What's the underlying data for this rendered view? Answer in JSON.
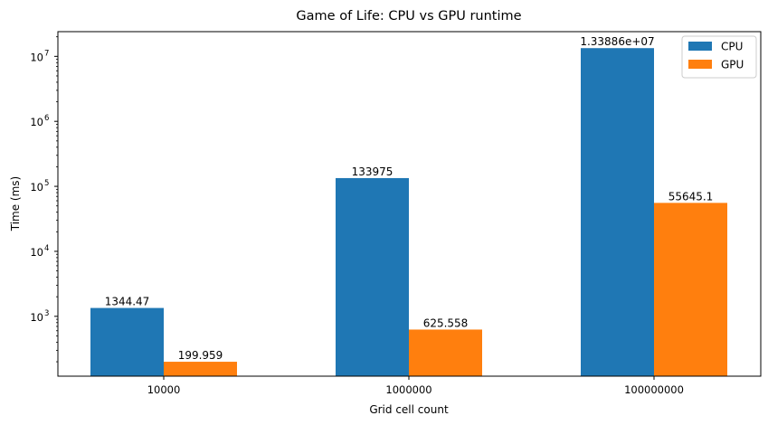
{
  "chart_data": {
    "type": "bar",
    "title": "Game of Life: CPU vs GPU runtime",
    "xlabel": "Grid cell count",
    "ylabel": "Time (ms)",
    "yscale": "log",
    "ylim": [
      120,
      24000000
    ],
    "categories": [
      "10000",
      "1000000",
      "100000000"
    ],
    "series": [
      {
        "name": "CPU",
        "color": "#1f77b4",
        "values": [
          1344.47,
          133975,
          13388600
        ],
        "labels": [
          "1344.47",
          "133975",
          "1.33886e+07"
        ]
      },
      {
        "name": "GPU",
        "color": "#ff7f0e",
        "values": [
          199.959,
          625.558,
          55645.1
        ],
        "labels": [
          "199.959",
          "625.558",
          "55645.1"
        ]
      }
    ],
    "yticks": [
      {
        "value": 1000,
        "base": "10",
        "exp": "3"
      },
      {
        "value": 10000,
        "base": "10",
        "exp": "4"
      },
      {
        "value": 100000,
        "base": "10",
        "exp": "5"
      },
      {
        "value": 1000000,
        "base": "10",
        "exp": "6"
      },
      {
        "value": 10000000,
        "base": "10",
        "exp": "7"
      }
    ],
    "legend_position": "top-right",
    "grid": false
  }
}
